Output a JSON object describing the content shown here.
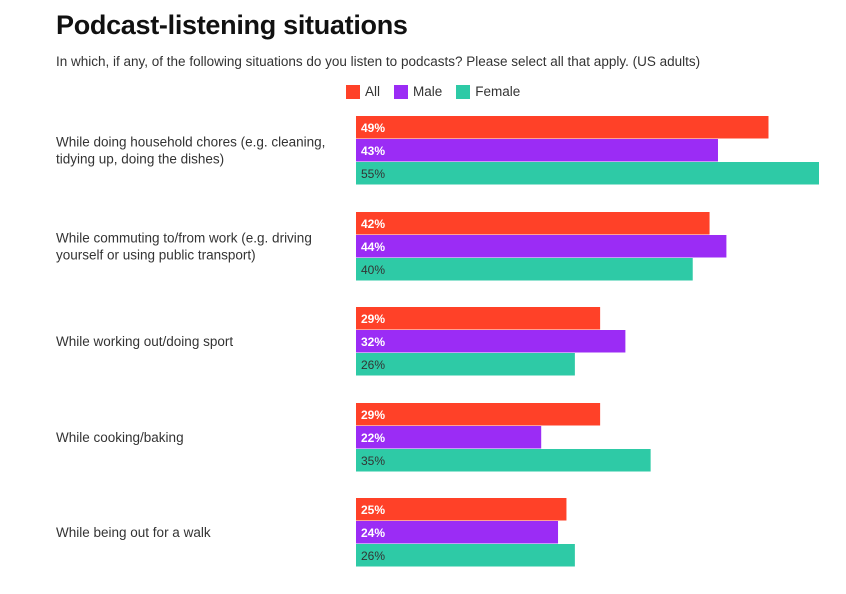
{
  "title": "Podcast-listening situations",
  "subtitle": "In which, if any, of the following situations do you listen to podcasts? Please select all that apply. (US adults)",
  "chart_data": {
    "type": "bar",
    "orientation": "horizontal",
    "title": "Podcast-listening situations",
    "subtitle": "In which, if any, of the following situations do you listen to podcasts? Please select all that apply. (US adults)",
    "legend_position": "top",
    "grid": false,
    "unit": "%",
    "xlim": [
      0,
      55
    ],
    "categories": [
      "While doing household chores (e.g. cleaning, tidying up, doing the dishes)",
      "While commuting to/from work (e.g. driving yourself or using public transport)",
      "While working out/doing sport",
      "While cooking/baking",
      "While being out for a walk"
    ],
    "category_lines": [
      [
        "While doing household chores (e.g. cleaning,",
        "tidying up, doing the dishes)"
      ],
      [
        "While commuting to/from work (e.g. driving",
        "yourself or using public transport)"
      ],
      [
        "While working out/doing sport"
      ],
      [
        "While cooking/baking"
      ],
      [
        "While being out for a walk"
      ]
    ],
    "series": [
      {
        "name": "All",
        "color": "#ff4128",
        "label_color": "#ffffff",
        "values": [
          49,
          42,
          29,
          29,
          25
        ]
      },
      {
        "name": "Male",
        "color": "#9b2cf5",
        "label_color": "#ffffff",
        "values": [
          43,
          44,
          32,
          22,
          24
        ]
      },
      {
        "name": "Female",
        "color": "#2ecaa6",
        "label_color": "#333333",
        "values": [
          55,
          40,
          26,
          35,
          26
        ]
      }
    ]
  }
}
